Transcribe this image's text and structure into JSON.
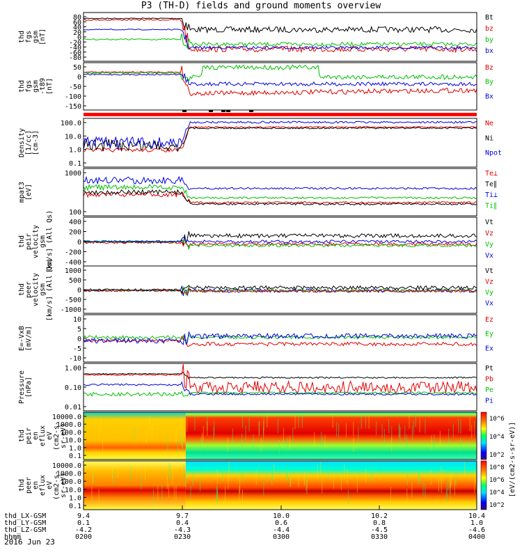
{
  "title": "P3 (TH-D) fields and ground moments overview",
  "date_label": "2016 Jun 23",
  "colorbar_label": "[eV/(cm2-s-sr-eV)]",
  "colorbar_label2": "[eV/(cm2-s-str-eV) (All Qs)]",
  "xaxis": {
    "rows": [
      {
        "name": "thd_LX-GSM",
        "values": [
          "9.4",
          "9.7",
          "10.0",
          "10.2",
          "10.4"
        ]
      },
      {
        "name": "thd_LY-GSM",
        "values": [
          "0.1",
          "0.4",
          "0.6",
          "0.8",
          "1.0"
        ]
      },
      {
        "name": "thd_LZ-GSM",
        "values": [
          "-4.2",
          "-4.3",
          "-4.4",
          "-4.5",
          "-4.6"
        ]
      },
      {
        "name": "hhmm",
        "values": [
          "0200",
          "0230",
          "0300",
          "0330",
          "0400"
        ]
      }
    ]
  },
  "chart_data": [
    {
      "type": "line",
      "ylabel": [
        "thd",
        "fgs",
        "gsm",
        "[nT]"
      ],
      "yticks": [
        "80",
        "60",
        "40",
        "20",
        "0",
        "-20",
        "-40",
        "-60",
        "-80"
      ],
      "legend": [
        "Bt",
        "bz",
        "by",
        "bx"
      ],
      "legend_colors": [
        "#000000",
        "#e00000",
        "#00c000",
        "#0000e0"
      ]
    },
    {
      "type": "line",
      "ylabel": [
        "thd",
        "fgs",
        "gsm",
        "-t89",
        "[nT]"
      ],
      "yticks": [
        "50",
        "0",
        "-50",
        "-100",
        "-150"
      ],
      "legend": [
        "Bz",
        "By",
        "Bx"
      ],
      "legend_colors": [
        "#e00000",
        "#00c000",
        "#0000e0"
      ]
    },
    {
      "type": "line",
      "ylabel": [
        "Density",
        "[1/cc]",
        "[cm-3]"
      ],
      "yticks": [
        "100.0",
        "10.0",
        "1.0",
        "0.1"
      ],
      "legend": [
        "Ne",
        "Ni",
        "Npot"
      ],
      "legend_colors": [
        "#e00000",
        "#000000",
        "#0000e0"
      ]
    },
    {
      "type": "line",
      "ylabel": [
        "mpat3",
        "[eV]"
      ],
      "yticks": [
        "1000",
        "100"
      ],
      "legend": [
        "Te⊥",
        "Te∥",
        "Ti⊥",
        "Ti∥"
      ],
      "legend_colors": [
        "#e00000",
        "#000000",
        "#0000e0",
        "#00c000"
      ]
    },
    {
      "type": "line",
      "ylabel": [
        "thd",
        "peir",
        "velocity",
        "gsm",
        "[km/s] (All Qs)"
      ],
      "yticks": [
        "400",
        "200",
        "0",
        "-200",
        "-400"
      ],
      "legend": [
        "Vt",
        "Vz",
        "Vy",
        "Vx"
      ],
      "legend_colors": [
        "#000000",
        "#e00000",
        "#00c000",
        "#0000e0"
      ]
    },
    {
      "type": "line",
      "ylabel": [
        "thd",
        "peer",
        "velocity",
        "gsm",
        "[km/s] (All Qs)"
      ],
      "yticks": [
        "1000",
        "500",
        "0",
        "-500",
        "-1000"
      ],
      "legend": [
        "Vt",
        "Vz",
        "Vy",
        "Vx"
      ],
      "legend_colors": [
        "#000000",
        "#e00000",
        "#00c000",
        "#0000e0"
      ]
    },
    {
      "type": "line",
      "ylabel": [
        "E=-VxB",
        "[mV/m]"
      ],
      "yticks": [
        "10",
        "5",
        "0",
        "-5",
        "-10"
      ],
      "legend": [
        "Ez",
        "Ey",
        "Ex"
      ],
      "legend_colors": [
        "#e00000",
        "#00c000",
        "#0000e0"
      ]
    },
    {
      "type": "line",
      "ylabel": [
        "Pressure",
        "[nPa]"
      ],
      "yticks": [
        "1.00",
        "0.10",
        "0.01"
      ],
      "legend": [
        "Pt",
        "Pb",
        "Pe",
        "Pi"
      ],
      "legend_colors": [
        "#000000",
        "#e00000",
        "#00c000",
        "#0000e0"
      ]
    },
    {
      "type": "heatmap",
      "ylabel": [
        "thd",
        "peir",
        "en",
        "eflux",
        "eV",
        "(cm2-s-",
        "sr-eV)"
      ],
      "yticks": [
        "10000.0",
        "1000.0",
        "100.0",
        "10.0",
        "1.0",
        "0.1"
      ],
      "colorbar_ticks": [
        "10^6",
        "10^4",
        "10^2"
      ]
    },
    {
      "type": "heatmap",
      "ylabel": [
        "thd",
        "peer",
        "en",
        "eflux",
        "eV",
        "(cm2-s-",
        "sr-eV)"
      ],
      "yticks": [
        "10000.0",
        "1000.0",
        "100.0",
        "10.0",
        "1.0",
        "0.1"
      ],
      "colorbar_ticks": [
        "10^8",
        "10^6",
        "10^4",
        "10^2"
      ]
    }
  ],
  "colors": {
    "red": "#e00000",
    "green": "#00c000",
    "blue": "#0000e0",
    "black": "#000000",
    "bar": "#ff0000"
  }
}
